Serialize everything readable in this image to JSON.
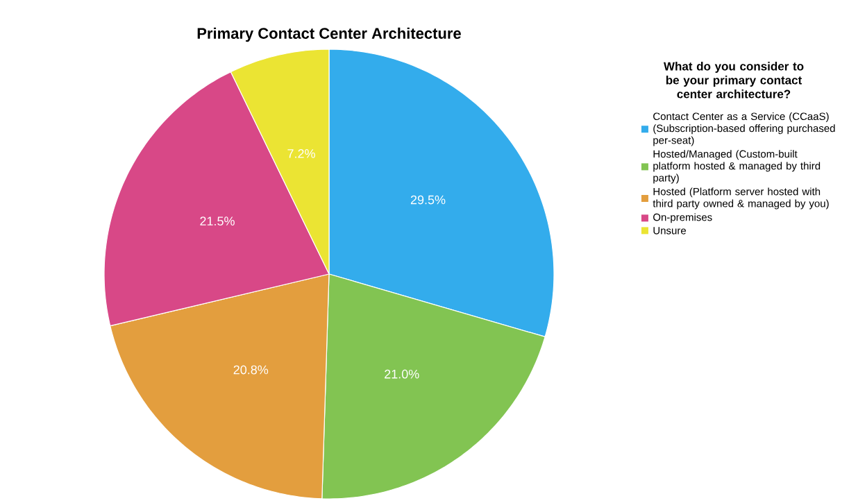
{
  "chart_data": {
    "type": "pie",
    "title": "Primary Contact Center Architecture",
    "legend_title": "What do you consider to be your primary contact center architecture?",
    "categories": [
      "Contact Center as a Service (CCaaS) (Subscription-based offering purchased per-seat)",
      "Hosted/Managed (Custom-built platform hosted & managed by third party)",
      "Hosted (Platform server hosted with third party owned & managed by you)",
      "On-premises",
      "Unsure"
    ],
    "values": [
      29.5,
      21.0,
      20.8,
      21.5,
      7.2
    ],
    "colors": [
      "#33acec",
      "#82c452",
      "#e39e3e",
      "#d84887",
      "#ebe433"
    ],
    "value_labels": [
      "29.5%",
      "21.0%",
      "20.8%",
      "21.5%",
      "7.2%"
    ],
    "legend": "right"
  }
}
